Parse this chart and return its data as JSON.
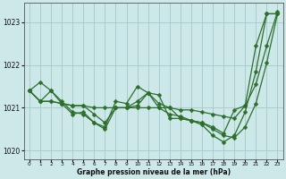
{
  "xlabel": "Graphe pression niveau de la mer (hPa)",
  "hours": [
    0,
    1,
    2,
    3,
    4,
    5,
    6,
    7,
    8,
    9,
    10,
    11,
    12,
    13,
    14,
    15,
    16,
    17,
    18,
    19,
    20,
    21,
    22,
    23
  ],
  "line1": [
    1021.4,
    1021.15,
    1021.15,
    1021.1,
    1021.05,
    1021.05,
    1021.0,
    1021.0,
    1021.0,
    1021.0,
    1021.0,
    1021.0,
    1021.0,
    1021.0,
    1020.95,
    1020.95,
    1020.9,
    1020.85,
    1020.8,
    1020.75,
    1021.05,
    1022.45,
    1023.2,
    1023.2
  ],
  "line2": [
    1021.4,
    1021.6,
    1021.4,
    1021.1,
    1020.85,
    1020.9,
    1020.65,
    1020.55,
    1021.15,
    1021.1,
    1021.5,
    1021.35,
    1021.0,
    1020.85,
    1020.8,
    1020.7,
    1020.65,
    1020.55,
    1020.4,
    1020.95,
    1021.05,
    1021.55,
    1022.45,
    1023.25
  ],
  "line3": [
    1021.4,
    1021.15,
    1021.4,
    1021.15,
    1020.9,
    1020.85,
    1020.65,
    1020.5,
    1021.0,
    1021.0,
    1021.05,
    1021.35,
    1021.1,
    1021.0,
    1020.75,
    1020.7,
    1020.6,
    1020.35,
    1020.2,
    1020.35,
    1020.9,
    1021.85,
    1023.2,
    1023.2
  ],
  "line4": [
    1021.4,
    1021.15,
    1021.15,
    1021.1,
    1021.05,
    1021.05,
    1020.85,
    1020.65,
    1021.0,
    1021.0,
    1021.15,
    1021.35,
    1021.3,
    1020.75,
    1020.75,
    1020.7,
    1020.65,
    1020.5,
    1020.35,
    1020.3,
    1020.55,
    1021.1,
    1022.05,
    1023.2
  ],
  "bg_color": "#cce8e8",
  "grid_color": "#aacccc",
  "line_color": "#2d6e2d",
  "ylim": [
    1019.8,
    1023.45
  ],
  "yticks": [
    1020,
    1021,
    1022,
    1023
  ],
  "marker_size": 2.5,
  "line_width": 0.9,
  "fig_width": 3.2,
  "fig_height": 2.0
}
